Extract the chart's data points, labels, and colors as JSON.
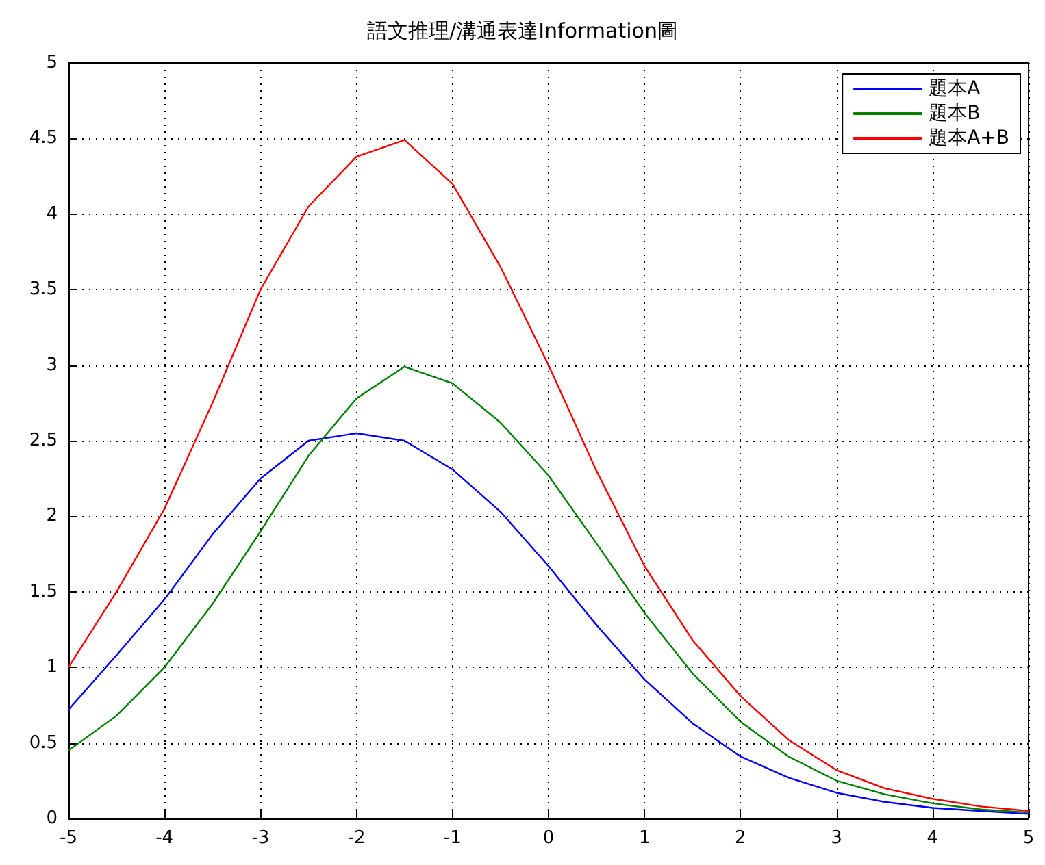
{
  "chart_data": {
    "type": "line",
    "title": "語文推理/溝通表達Information圖",
    "x": [
      -5,
      -4.5,
      -4,
      -3.5,
      -3,
      -2.5,
      -2,
      -1.5,
      -1,
      -0.5,
      0,
      0.5,
      1,
      1.5,
      2,
      2.5,
      3,
      3.5,
      4,
      4.5,
      5
    ],
    "series": [
      {
        "name": "題本A",
        "color": "#0000ff",
        "values": [
          0.72,
          1.08,
          1.45,
          1.88,
          2.25,
          2.5,
          2.55,
          2.5,
          2.31,
          2.03,
          1.67,
          1.28,
          0.92,
          0.63,
          0.41,
          0.27,
          0.17,
          0.11,
          0.07,
          0.05,
          0.03
        ]
      },
      {
        "name": "題本B",
        "color": "#008000",
        "values": [
          0.45,
          0.68,
          1.0,
          1.42,
          1.9,
          2.4,
          2.78,
          2.99,
          2.88,
          2.62,
          2.27,
          1.82,
          1.36,
          0.96,
          0.64,
          0.41,
          0.25,
          0.16,
          0.1,
          0.06,
          0.04
        ]
      },
      {
        "name": "題本A+B",
        "color": "#ff0000",
        "values": [
          1.0,
          1.5,
          2.05,
          2.75,
          3.5,
          4.05,
          4.38,
          4.49,
          4.2,
          3.65,
          3.0,
          2.3,
          1.67,
          1.18,
          0.81,
          0.52,
          0.32,
          0.2,
          0.13,
          0.08,
          0.05
        ]
      }
    ],
    "xlim": [
      -5,
      5
    ],
    "xticks": [
      -5,
      -4,
      -3,
      -2,
      -1,
      0,
      1,
      2,
      3,
      4,
      5
    ],
    "ylim": [
      0,
      5
    ],
    "yticks": [
      0,
      0.5,
      1,
      1.5,
      2,
      2.5,
      3,
      3.5,
      4,
      4.5,
      5
    ],
    "grid": true,
    "legend": "top right",
    "marker": "none",
    "line_style": "solid"
  }
}
